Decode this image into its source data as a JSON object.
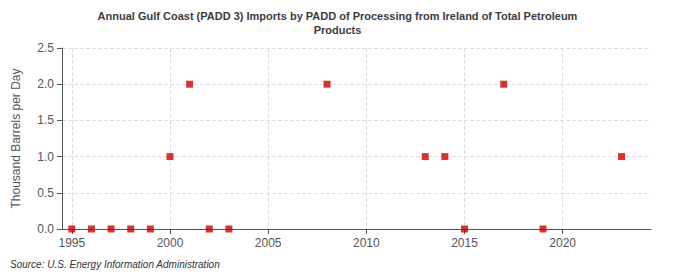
{
  "chart_data": {
    "type": "scatter",
    "title": "Annual Gulf Coast (PADD 3) Imports by PADD of Processing from Ireland of Total Petroleum\nProducts",
    "ylabel": "Thousand Barrels per Day",
    "source": "Source: U.S. Energy Information Administration",
    "x": [
      1995,
      1996,
      1997,
      1998,
      1999,
      2000,
      2001,
      2002,
      2003,
      2008,
      2013,
      2014,
      2015,
      2017,
      2019,
      2023
    ],
    "values": [
      0.0,
      0.0,
      0.0,
      0.0,
      0.0,
      1.0,
      2.0,
      0.0,
      0.0,
      2.0,
      1.0,
      1.0,
      0.0,
      2.0,
      0.0,
      1.0
    ],
    "color": "#cc0000",
    "marker": "square",
    "xlim": [
      1994.5,
      2024.5
    ],
    "xticks": [
      1995,
      2000,
      2005,
      2010,
      2015,
      2020
    ],
    "ylim": [
      0,
      2.5
    ],
    "yticks": [
      {
        "value": 0,
        "label": "0.0"
      },
      0.5,
      {
        "value": 1,
        "label": "1.0"
      },
      1.5,
      {
        "value": 2,
        "label": "2.0"
      },
      2.5
    ],
    "grid": true
  }
}
